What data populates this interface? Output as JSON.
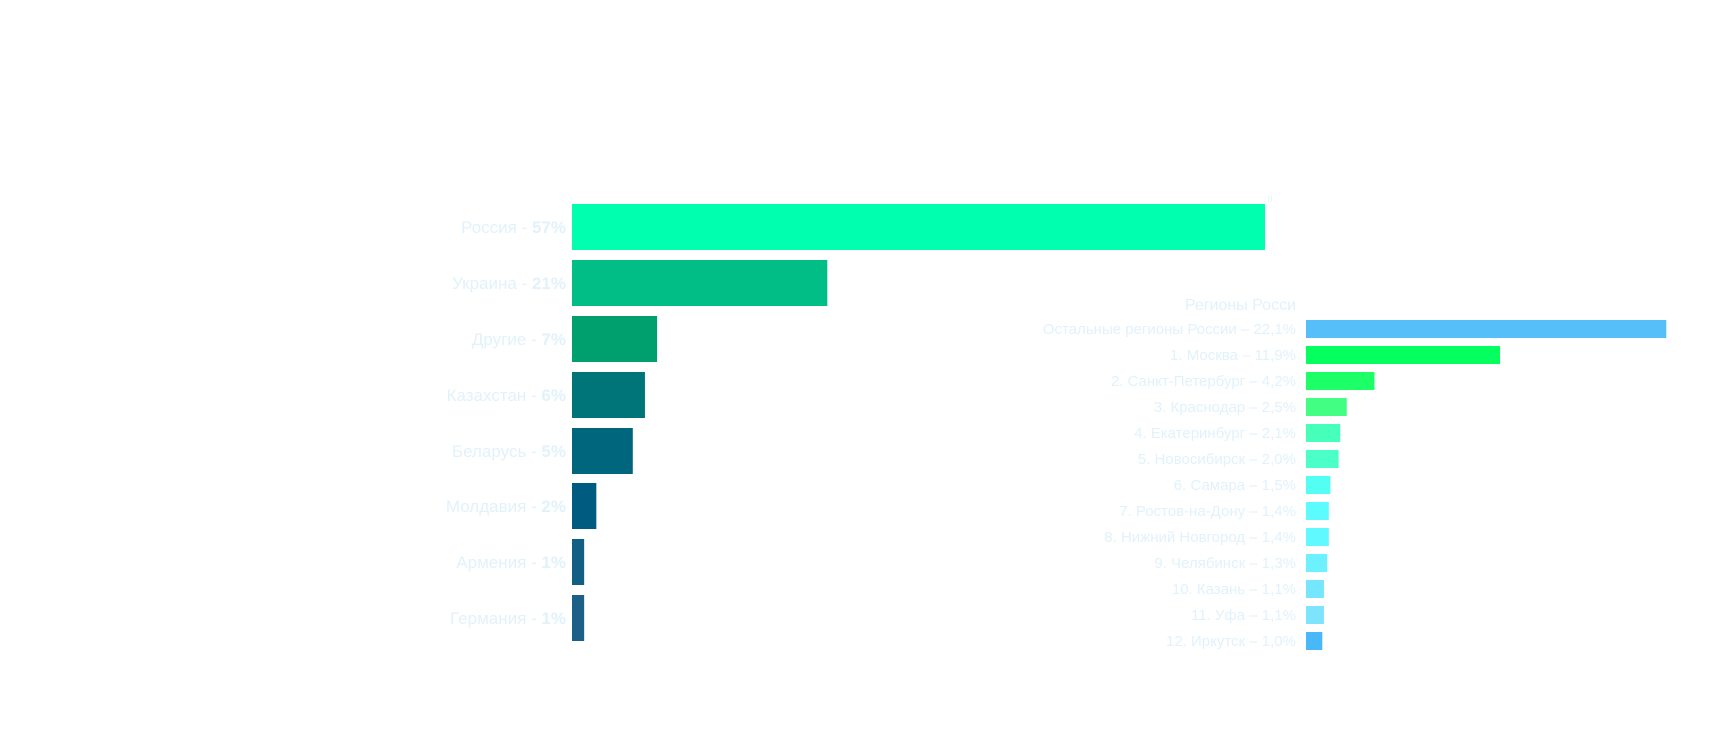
{
  "chart_data": [
    {
      "type": "bar",
      "orientation": "horizontal",
      "categories": [
        {
          "name": "Россия - ",
          "pct": "57%"
        },
        {
          "name": "Украина - ",
          "pct": "21%"
        },
        {
          "name": "Другие - ",
          "pct": "7%"
        },
        {
          "name": "Казахстан - ",
          "pct": "6%"
        },
        {
          "name": "Беларусь - ",
          "pct": "5%"
        },
        {
          "name": "Молдавия - ",
          "pct": "2%"
        },
        {
          "name": "Армения - ",
          "pct": "1%"
        },
        {
          "name": "Германия - ",
          "pct": "1%"
        }
      ],
      "values": [
        57,
        21,
        7,
        6,
        5,
        2,
        1,
        1
      ],
      "colors": [
        "#00ffae",
        "#00be86",
        "#009f6e",
        "#007579",
        "#00667d",
        "#005b80",
        "#135e83",
        "#1c6088"
      ],
      "top_marker": "0",
      "xlim": [
        0,
        57
      ]
    },
    {
      "type": "bar",
      "orientation": "horizontal",
      "title": "Регионы Росси",
      "categories": [
        "Остальные регионы России – 22,1%",
        "1.   Москва – 11,9%",
        "2.   Санкт-Петербург – 4,2%",
        "3.   Краснодар – 2,5%",
        "4.   Екатеринбург – 2,1%",
        "5.   Новосибирск – 2,0%",
        "6.   Самара – 1,5%",
        "7.   Ростов-на-Дону – 1,4%",
        "8.   Нижний Новгород – 1,4%",
        "9.   Челябинск – 1,3%",
        "10. Казань – 1,1%",
        "11. Уфа – 1,1%",
        "12. Иркутск – 1,0%"
      ],
      "values": [
        22.1,
        11.9,
        4.2,
        2.5,
        2.1,
        2.0,
        1.5,
        1.4,
        1.4,
        1.3,
        1.1,
        1.1,
        1.0
      ],
      "colors": [
        "#56bffa",
        "#04ff5f",
        "#1cff66",
        "#42ff83",
        "#45ffba",
        "#4bffc8",
        "#53fff2",
        "#5cfbff",
        "#5ff9ff",
        "#6df1ff",
        "#74e6fd",
        "#7ee4fc",
        "#49b8fb"
      ]
    }
  ]
}
